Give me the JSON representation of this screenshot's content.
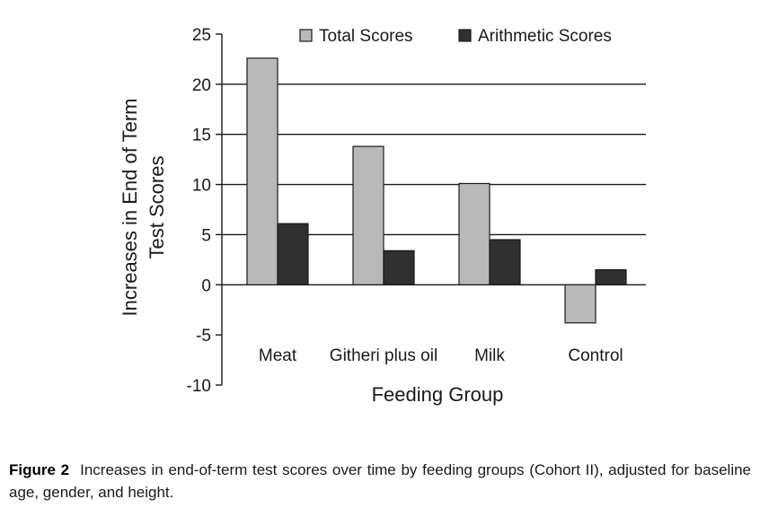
{
  "chart_data": {
    "type": "bar",
    "categories": [
      "Meat",
      "Githeri plus oil",
      "Milk",
      "Control"
    ],
    "series": [
      {
        "name": "Total Scores",
        "values": [
          22.6,
          13.8,
          10.1,
          -3.8
        ],
        "color": "#b9b9b9"
      },
      {
        "name": "Arithmetic Scores",
        "values": [
          6.1,
          3.4,
          4.5,
          1.5
        ],
        "color": "#303030"
      }
    ],
    "xlabel": "Feeding Group",
    "ylabel_lines": [
      "Increases in End of Term",
      "Test Scores"
    ],
    "ylim": [
      -10,
      25
    ],
    "yticks": [
      -10,
      -5,
      0,
      5,
      10,
      15,
      20,
      25
    ],
    "grid": true,
    "legend_position": "top-right"
  },
  "caption": {
    "label": "Figure 2",
    "text": "Increases in end-of-term test scores over time by feeding groups (Cohort II), adjusted for baseline age, gender, and height."
  }
}
